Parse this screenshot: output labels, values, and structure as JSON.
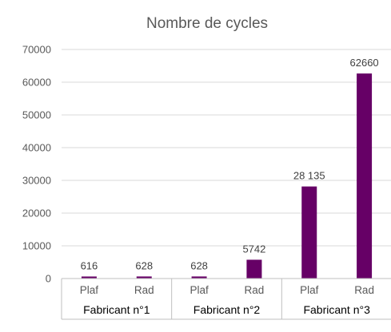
{
  "chart_data": {
    "type": "bar",
    "title": "Nombre de cycles",
    "groups": [
      "Fabricant n°1",
      "Fabricant n°2",
      "Fabricant n°3"
    ],
    "categories": [
      "Plaf",
      "Rad",
      "Plaf",
      "Rad",
      "Plaf",
      "Rad"
    ],
    "values": [
      616,
      628,
      628,
      5742,
      28135,
      62660
    ],
    "data_labels": [
      "616",
      "628",
      "628",
      "5742",
      "28 135",
      "62660"
    ],
    "yticks": [
      "0",
      "10000",
      "20000",
      "30000",
      "40000",
      "50000",
      "60000",
      "70000"
    ],
    "ylim": [
      0,
      70000
    ],
    "grid": true,
    "bar_color": "#660066",
    "grid_color": "#d9d9d9",
    "axis_color": "#bfbfbf"
  }
}
